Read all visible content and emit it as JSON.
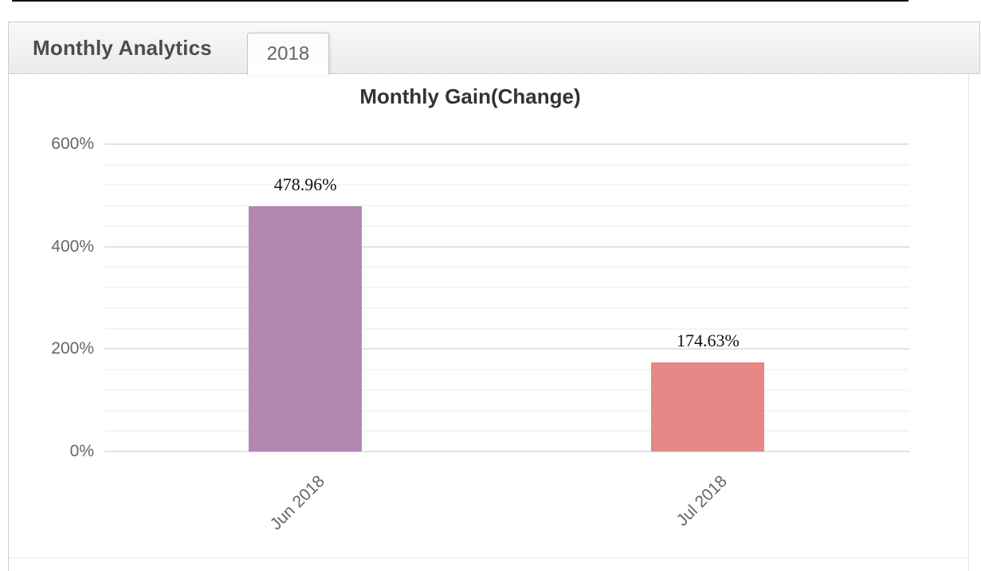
{
  "widget": {
    "title": "Monthly Analytics",
    "tab_label": "2018"
  },
  "chart_data": {
    "type": "bar",
    "title": "Monthly Gain(Change)",
    "categories": [
      "Jun 2018",
      "Jul 2018"
    ],
    "values": [
      478.96,
      174.63
    ],
    "value_labels": [
      "478.96%",
      "174.63%"
    ],
    "y_ticks": [
      0,
      200,
      400,
      600
    ],
    "y_tick_labels": [
      "0%",
      "200%",
      "400%",
      "600%"
    ],
    "y_minor_step": 40,
    "ylim": [
      0,
      600
    ],
    "grid": true,
    "legend": false,
    "x_label_rotation": -45,
    "bar_colors": [
      "#b187b1",
      "#e58888"
    ]
  }
}
